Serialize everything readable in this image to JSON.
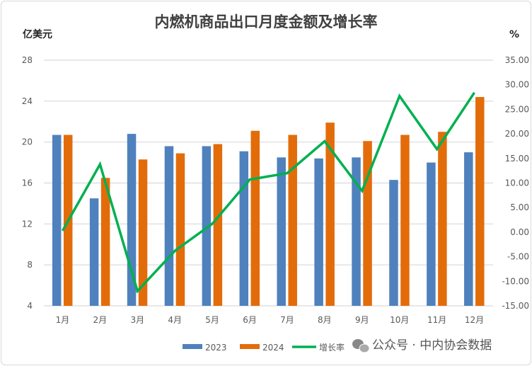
{
  "chart_data": {
    "type": "bar",
    "title": "内燃机商品出口月度金额及增长率",
    "ylabel": "亿美元",
    "y2label": "%",
    "categories": [
      "1月",
      "2月",
      "3月",
      "4月",
      "5月",
      "6月",
      "7月",
      "8月",
      "9月",
      "10月",
      "11月",
      "12月"
    ],
    "ylim": [
      4,
      28
    ],
    "yticks": [
      "4",
      "8",
      "12",
      "16",
      "20",
      "24",
      "28"
    ],
    "y2lim": [
      -15,
      35
    ],
    "y2ticks": [
      "-15.00",
      "-10.00",
      "-5.00",
      "0.00",
      "5.00",
      "10.00",
      "15.00",
      "20.00",
      "25.00",
      "30.00",
      "35.00"
    ],
    "series": [
      {
        "name": "2023",
        "type": "bar",
        "axis": "left",
        "color": "#4f81bd",
        "values": [
          20.7,
          14.5,
          20.8,
          19.6,
          19.6,
          19.1,
          18.5,
          18.4,
          18.5,
          16.3,
          18.0,
          19.0
        ]
      },
      {
        "name": "2024",
        "type": "bar",
        "axis": "left",
        "color": "#e36c0a",
        "values": [
          20.7,
          16.5,
          18.3,
          18.9,
          19.8,
          21.1,
          20.7,
          21.9,
          20.1,
          20.7,
          21.0,
          24.4
        ]
      },
      {
        "name": "增长率",
        "type": "line",
        "axis": "right",
        "color": "#00b050",
        "values": [
          0.3,
          13.8,
          -12.0,
          -3.8,
          1.7,
          10.7,
          12.0,
          18.5,
          8.4,
          27.7,
          16.9,
          28.4
        ]
      }
    ],
    "grid": true,
    "legend": "bottom"
  },
  "watermark": "公众号 · 中内协会数据"
}
